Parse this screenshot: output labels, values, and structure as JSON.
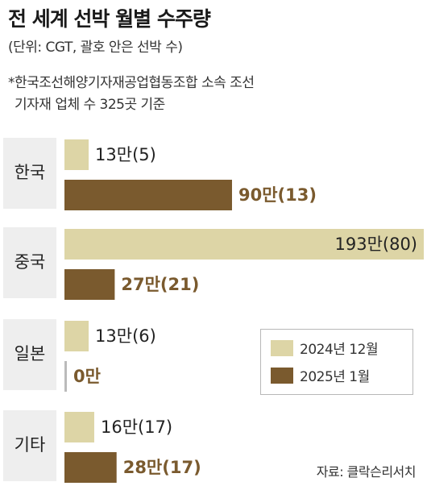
{
  "title": "전 세계 선박 월별 수주량",
  "subtitle": "(단위: CGT, 괄호 안은 선박 수)",
  "note": [
    "*한국조선해양기자재공업협동조합 소속 조선",
    "기자재 업체 수 325곳 기준"
  ],
  "source": "자료: 클락슨리서치",
  "colors": {
    "series_2024": "#ddd5a6",
    "series_2025": "#7a5a2e",
    "category_bg": "#eeeeee"
  },
  "chart_data": {
    "type": "bar",
    "orientation": "horizontal",
    "categories": [
      "한국",
      "중국",
      "일본",
      "기타"
    ],
    "series": [
      {
        "name": "2024년 12월",
        "values": [
          13,
          193,
          13,
          16
        ],
        "labels": [
          "13만(5)",
          "193만(80)",
          "13만(6)",
          "16만(17)"
        ]
      },
      {
        "name": "2025년 1월",
        "values": [
          90,
          27,
          0,
          28
        ],
        "labels": [
          "90만(13)",
          "27만(21)",
          "0만",
          "28만(17)"
        ]
      }
    ],
    "xlim": [
      0,
      193
    ],
    "legend_position": "right",
    "grid": false
  }
}
